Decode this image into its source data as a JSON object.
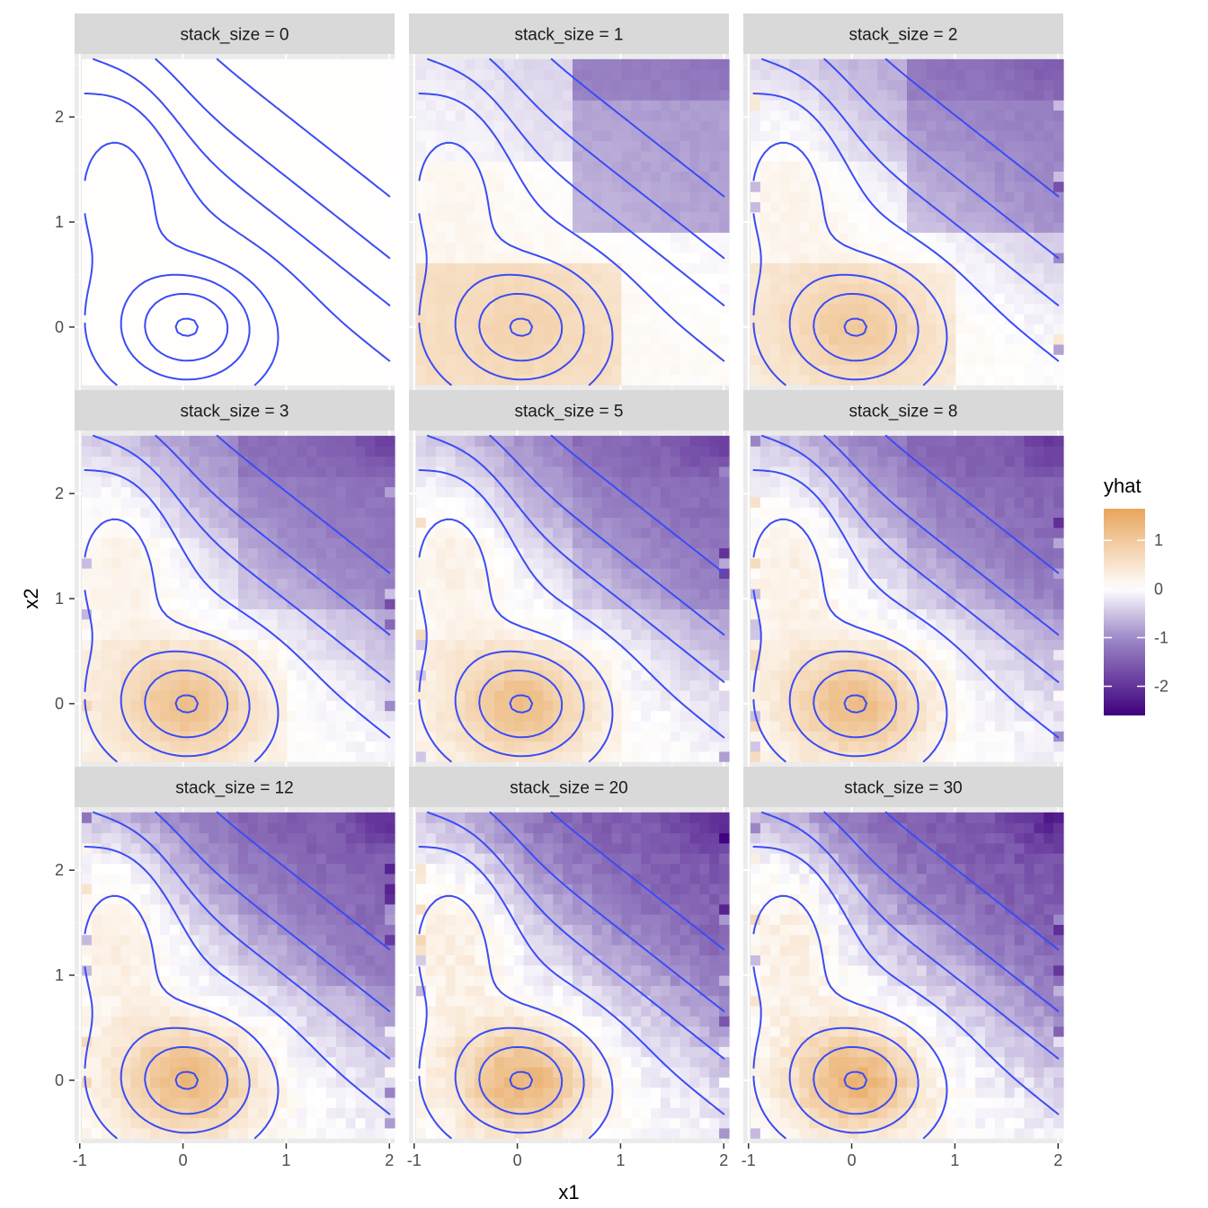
{
  "chart_data": {
    "type": "heatmap",
    "subtype": "faceted raster with contour overlay",
    "x": {
      "label": "x1",
      "range": [
        -1.05,
        2.05
      ],
      "ticks": [
        -1,
        0,
        1,
        2
      ],
      "tick_labels": [
        "-1",
        "0",
        "1",
        "2"
      ]
    },
    "y": {
      "label": "x2",
      "range": [
        -0.6,
        2.6
      ],
      "ticks": [
        0,
        1,
        2
      ],
      "tick_labels": [
        "0",
        "1",
        "2"
      ]
    },
    "facet_variable": "stack_size",
    "facets": [
      {
        "stack_size": 0,
        "label": "stack_size = 0"
      },
      {
        "stack_size": 1,
        "label": "stack_size = 1"
      },
      {
        "stack_size": 2,
        "label": "stack_size = 2"
      },
      {
        "stack_size": 3,
        "label": "stack_size = 3"
      },
      {
        "stack_size": 5,
        "label": "stack_size = 5"
      },
      {
        "stack_size": 8,
        "label": "stack_size = 8"
      },
      {
        "stack_size": 12,
        "label": "stack_size = 12"
      },
      {
        "stack_size": 20,
        "label": "stack_size = 20"
      },
      {
        "stack_size": 30,
        "label": "stack_size = 30"
      }
    ],
    "fill": {
      "variable": "yhat",
      "legend_title": "yhat",
      "range": [
        -2.6,
        1.65
      ],
      "ticks": [
        1,
        0,
        -1,
        -2
      ],
      "tick_labels": [
        "1",
        "0",
        "-1",
        "-2"
      ],
      "colors": {
        "low": "#3f007d",
        "mid_low": "#9e8ac8",
        "mid": "#ffffff",
        "high": "#e8a65c"
      }
    },
    "contour_color": "#3b4cf5",
    "contour_levels": [
      -1.4,
      -1.0,
      -0.6,
      -0.25,
      0.15,
      0.55,
      0.95,
      1.35
    ],
    "grid_resolution": {
      "nx": 32,
      "ny": 32
    }
  }
}
